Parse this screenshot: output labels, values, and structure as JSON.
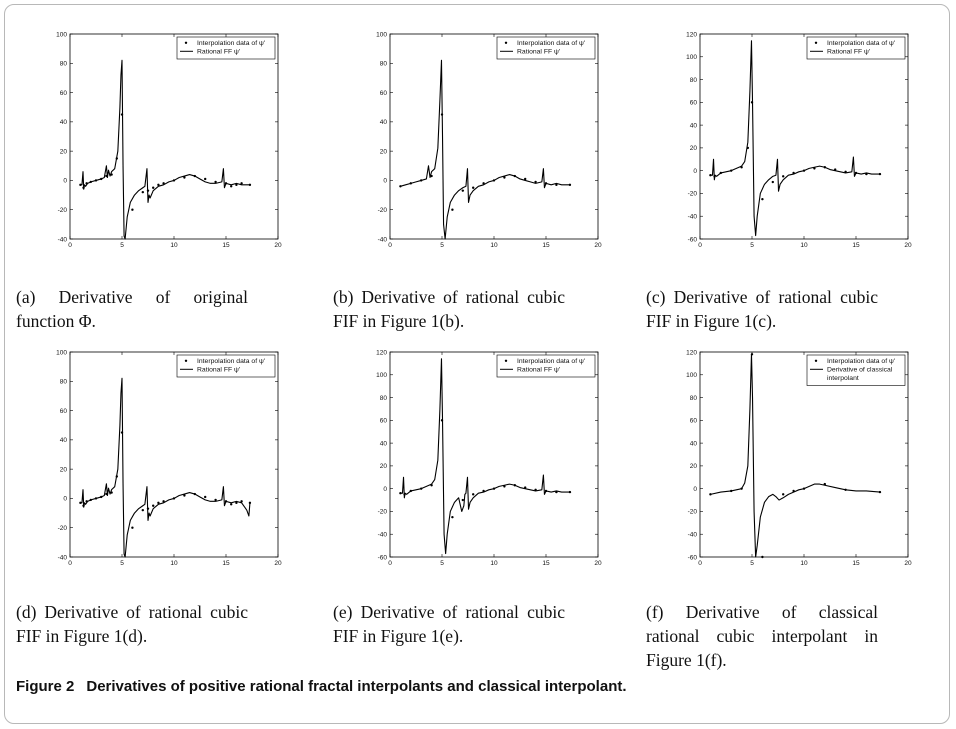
{
  "figure": {
    "label": "Figure 2",
    "caption": "Derivatives of positive rational fractal interpolants and classical interpolant."
  },
  "colors": {
    "line": "#000000",
    "background": "#ffffff",
    "frame": "#b8b8b8"
  },
  "chart_data": [
    {
      "id": "a",
      "type": "line",
      "caption": "(a) Derivative of original function Φ.",
      "xlim": [
        0,
        20
      ],
      "ylim": [
        -40,
        100
      ],
      "xticks": [
        "0",
        "5",
        "10",
        "15",
        "20"
      ],
      "yticks": [
        "-40",
        "-20",
        "0",
        "20",
        "40",
        "60",
        "80",
        "100"
      ],
      "legend": {
        "position": "top-right",
        "entries": [
          "Interpolation data of ψ'",
          "Rational FF ψ'"
        ]
      },
      "series": [
        {
          "kind": "markers",
          "x": [
            1,
            1.3,
            1.6,
            2,
            2.5,
            3,
            3.5,
            4,
            4.5,
            5,
            6,
            7,
            7.5,
            8,
            8.5,
            9,
            10,
            11,
            12,
            13,
            14,
            15,
            15.5,
            16,
            16.5,
            17.3
          ],
          "y": [
            -3,
            -5,
            -2,
            -1,
            0,
            1,
            3,
            4,
            15,
            45,
            -20,
            -8,
            -7,
            -5,
            -3,
            -2,
            0,
            2,
            3,
            1,
            -1,
            -2,
            -4,
            -3,
            -2,
            -3
          ]
        },
        {
          "kind": "line",
          "x": [
            1,
            1.15,
            1.25,
            1.32,
            1.4,
            1.5,
            1.7,
            2,
            2.5,
            3,
            3.3,
            3.5,
            3.6,
            3.7,
            3.85,
            4,
            4.3,
            4.6,
            4.8,
            4.9,
            5,
            5.1,
            5.2,
            5.3,
            5.5,
            5.8,
            6.2,
            6.6,
            7,
            7.2,
            7.4,
            7.5,
            7.6,
            7.7,
            8,
            8.5,
            9,
            9.5,
            10,
            10.5,
            11,
            11.5,
            12,
            12.5,
            13,
            13.5,
            14,
            14.6,
            14.75,
            14.85,
            15,
            15.5,
            16,
            16.5,
            17.3
          ],
          "y": [
            -3,
            -3,
            6,
            -6,
            -3,
            -4,
            -2,
            -1,
            0,
            1,
            2,
            10,
            2,
            7,
            3,
            6,
            8,
            20,
            50,
            72,
            82,
            10,
            -38,
            -40,
            -25,
            -15,
            -10,
            -7,
            -5,
            -4,
            8,
            -15,
            -10,
            -12,
            -7,
            -4,
            -3,
            -1,
            0,
            2,
            3,
            4,
            3,
            1,
            -1,
            -2,
            -2,
            -1,
            8,
            -5,
            -2,
            -3,
            -2,
            -3,
            -3
          ]
        }
      ]
    },
    {
      "id": "b",
      "type": "line",
      "caption": "(b) Derivative of rational cubic FIF in Figure 1(b).",
      "xlim": [
        0,
        20
      ],
      "ylim": [
        -40,
        100
      ],
      "xticks": [
        "0",
        "5",
        "10",
        "15",
        "20"
      ],
      "yticks": [
        "-40",
        "-20",
        "0",
        "20",
        "40",
        "60",
        "80",
        "100"
      ],
      "legend": {
        "position": "top-right",
        "entries": [
          "Interpolation data of ψ'",
          "Rational FF ψ'"
        ]
      },
      "series": [
        {
          "kind": "markers",
          "x": [
            1,
            2,
            3,
            4,
            5,
            6,
            7,
            8,
            9,
            10,
            11,
            12,
            13,
            14,
            15,
            16,
            17.3
          ],
          "y": [
            -4,
            -2,
            0,
            3,
            45,
            -20,
            -7,
            -5,
            -2,
            0,
            2,
            3,
            1,
            -1,
            -2,
            -3,
            -3
          ]
        },
        {
          "kind": "line",
          "x": [
            1,
            1.5,
            2,
            2.5,
            3,
            3.5,
            3.7,
            3.85,
            4,
            4.3,
            4.6,
            4.8,
            4.95,
            5.05,
            5.15,
            5.3,
            5.5,
            5.8,
            6.2,
            6.6,
            7,
            7.3,
            7.45,
            7.55,
            7.7,
            8,
            8.5,
            9,
            9.5,
            10,
            10.5,
            11,
            11.5,
            12,
            12.5,
            13,
            13.5,
            14,
            14.6,
            14.75,
            14.85,
            15,
            15.5,
            16,
            16.5,
            17.3
          ],
          "y": [
            -4,
            -3,
            -2,
            -1,
            0,
            1,
            10,
            2,
            6,
            8,
            22,
            55,
            82,
            30,
            -30,
            -40,
            -25,
            -15,
            -10,
            -7,
            -5,
            -4,
            8,
            -15,
            -10,
            -7,
            -4,
            -3,
            -1,
            0,
            2,
            3,
            4,
            3,
            1,
            0,
            -1,
            -2,
            -1,
            8,
            -5,
            -2,
            -3,
            -2,
            -3,
            -3
          ]
        }
      ]
    },
    {
      "id": "c",
      "type": "line",
      "caption": "(c) Derivative of rational cubic FIF in Figure 1(c).",
      "xlim": [
        0,
        20
      ],
      "ylim": [
        -60,
        120
      ],
      "xticks": [
        "0",
        "5",
        "10",
        "15",
        "20"
      ],
      "yticks": [
        "-60",
        "-40",
        "-20",
        "0",
        "20",
        "40",
        "60",
        "80",
        "100",
        "120"
      ],
      "legend": {
        "position": "top-right",
        "entries": [
          "Interpolation data of ψ'",
          "Rational FF ψ'"
        ]
      },
      "series": [
        {
          "kind": "markers",
          "x": [
            1,
            1.4,
            2,
            3,
            4,
            4.6,
            5,
            6,
            7,
            8,
            9,
            10,
            11,
            12,
            13,
            14,
            15,
            16,
            17.3
          ],
          "y": [
            -4,
            -5,
            -2,
            0,
            3,
            20,
            60,
            -25,
            -10,
            -5,
            -2,
            0,
            2,
            3,
            1,
            -1,
            -2,
            -3,
            -3
          ]
        },
        {
          "kind": "line",
          "x": [
            1,
            1.2,
            1.3,
            1.38,
            1.45,
            1.6,
            2,
            2.5,
            3,
            3.5,
            4,
            4.3,
            4.6,
            4.8,
            4.95,
            5.05,
            5.2,
            5.35,
            5.5,
            5.8,
            6.2,
            6.6,
            7,
            7.3,
            7.45,
            7.55,
            7.7,
            8,
            8.5,
            9,
            9.5,
            10,
            10.5,
            11,
            11.5,
            12,
            12.5,
            13,
            13.5,
            14,
            14.6,
            14.75,
            14.85,
            15,
            15.5,
            16,
            16.5,
            17.3
          ],
          "y": [
            -4,
            -4,
            10,
            -8,
            -4,
            -5,
            -2,
            -1,
            0,
            2,
            4,
            8,
            25,
            70,
            114,
            60,
            -40,
            -57,
            -40,
            -20,
            -12,
            -8,
            -5,
            -4,
            10,
            -18,
            -12,
            -8,
            -4,
            -3,
            -1,
            0,
            2,
            3,
            4,
            3,
            1,
            0,
            -1,
            -2,
            -1,
            12,
            -5,
            -2,
            -3,
            -2,
            -3,
            -3
          ]
        }
      ]
    },
    {
      "id": "d",
      "type": "line",
      "caption": "(d) Derivative of rational cubic FIF in Figure 1(d).",
      "xlim": [
        0,
        20
      ],
      "ylim": [
        -40,
        100
      ],
      "xticks": [
        "0",
        "5",
        "10",
        "15",
        "20"
      ],
      "yticks": [
        "-40",
        "-20",
        "0",
        "20",
        "40",
        "60",
        "80",
        "100"
      ],
      "legend": {
        "position": "top-right",
        "entries": [
          "Interpolation data of ψ'",
          "Rational FF ψ'"
        ]
      },
      "series": [
        {
          "kind": "markers",
          "x": [
            1,
            1.3,
            1.6,
            2,
            2.5,
            3,
            3.5,
            4,
            4.5,
            5,
            6,
            7,
            7.5,
            8,
            8.5,
            9,
            10,
            11,
            12,
            13,
            14,
            15,
            15.5,
            16,
            16.5,
            17.3
          ],
          "y": [
            -3,
            -5,
            -2,
            -1,
            0,
            1,
            3,
            4,
            15,
            45,
            -20,
            -8,
            -7,
            -5,
            -3,
            -2,
            0,
            2,
            3,
            1,
            -1,
            -2,
            -4,
            -3,
            -2,
            -3
          ]
        },
        {
          "kind": "line",
          "x": [
            1,
            1.15,
            1.25,
            1.32,
            1.4,
            1.5,
            1.7,
            2,
            2.5,
            3,
            3.3,
            3.5,
            3.6,
            3.7,
            3.85,
            4,
            4.3,
            4.6,
            4.8,
            4.9,
            5,
            5.1,
            5.2,
            5.3,
            5.5,
            5.8,
            6.2,
            6.6,
            7,
            7.2,
            7.4,
            7.5,
            7.6,
            7.7,
            8,
            8.5,
            9,
            9.5,
            10,
            10.5,
            11,
            11.5,
            12,
            12.5,
            13,
            13.5,
            14,
            14.6,
            14.75,
            14.85,
            15,
            15.5,
            16,
            16.5,
            17,
            17.2,
            17.3
          ],
          "y": [
            -3,
            -3,
            6,
            -6,
            -3,
            -4,
            -2,
            -1,
            0,
            1,
            2,
            10,
            2,
            7,
            3,
            6,
            8,
            20,
            50,
            72,
            82,
            10,
            -38,
            -40,
            -25,
            -15,
            -10,
            -7,
            -5,
            -4,
            8,
            -15,
            -10,
            -12,
            -7,
            -4,
            -3,
            -1,
            0,
            2,
            3,
            4,
            3,
            1,
            -1,
            -2,
            -2,
            -1,
            8,
            -5,
            -2,
            -3,
            -2,
            -3,
            -8,
            -12,
            -3
          ]
        }
      ]
    },
    {
      "id": "e",
      "type": "line",
      "caption": "(e) Derivative of rational cubic FIF in Figure 1(e).",
      "xlim": [
        0,
        20
      ],
      "ylim": [
        -60,
        120
      ],
      "xticks": [
        "0",
        "5",
        "10",
        "15",
        "20"
      ],
      "yticks": [
        "-60",
        "-40",
        "-20",
        "0",
        "20",
        "40",
        "60",
        "80",
        "100",
        "120"
      ],
      "legend": {
        "position": "top-right",
        "entries": [
          "Interpolation data of ψ'",
          "Rational FF ψ'"
        ]
      },
      "series": [
        {
          "kind": "markers",
          "x": [
            1,
            1.4,
            2,
            3,
            4,
            5,
            6,
            7,
            8,
            9,
            10,
            11,
            12,
            13,
            14,
            15,
            16,
            17.3
          ],
          "y": [
            -4,
            -5,
            -2,
            0,
            3,
            60,
            -25,
            -10,
            -5,
            -2,
            0,
            2,
            3,
            1,
            -1,
            -2,
            -3,
            -3
          ]
        },
        {
          "kind": "line",
          "x": [
            1,
            1.2,
            1.3,
            1.38,
            1.45,
            1.6,
            2,
            2.5,
            3,
            3.5,
            4,
            4.3,
            4.6,
            4.8,
            4.95,
            5.05,
            5.2,
            5.35,
            5.5,
            5.8,
            6.2,
            6.6,
            6.9,
            7.1,
            7.2,
            7.3,
            7.45,
            7.55,
            7.7,
            8,
            8.5,
            9,
            9.5,
            10,
            10.5,
            11,
            11.5,
            12,
            12.5,
            13,
            13.5,
            14,
            14.6,
            14.75,
            14.85,
            15,
            15.5,
            16,
            16.5,
            17.3
          ],
          "y": [
            -4,
            -4,
            10,
            -8,
            -4,
            -5,
            -2,
            -1,
            0,
            2,
            4,
            8,
            25,
            70,
            114,
            60,
            -40,
            -57,
            -40,
            -20,
            -12,
            -8,
            -20,
            -15,
            -5,
            -4,
            10,
            -18,
            -12,
            -8,
            -4,
            -3,
            -1,
            0,
            2,
            3,
            4,
            3,
            1,
            0,
            -1,
            -2,
            -1,
            12,
            -5,
            -2,
            -3,
            -2,
            -3,
            -3
          ]
        }
      ]
    },
    {
      "id": "f",
      "type": "line",
      "caption": "(f) Derivative of classical rational cubic interpolant in Figure 1(f).",
      "xlim": [
        0,
        20
      ],
      "ylim": [
        -60,
        120
      ],
      "xticks": [
        "0",
        "5",
        "10",
        "15",
        "20"
      ],
      "yticks": [
        "-60",
        "-40",
        "-20",
        "0",
        "20",
        "40",
        "60",
        "80",
        "100",
        "120"
      ],
      "legend": {
        "position": "top-right",
        "entries": [
          "Interpolation data of ψ'",
          "Derivative of classical interpolant"
        ]
      },
      "series": [
        {
          "kind": "markers",
          "x": [
            1,
            3,
            4,
            5,
            6,
            8,
            9,
            10,
            12,
            14,
            17.3
          ],
          "y": [
            -5,
            -2,
            0,
            118,
            -60,
            -5,
            -2,
            0,
            4,
            -1,
            -3
          ]
        },
        {
          "kind": "line",
          "x": [
            1,
            2,
            3,
            3.5,
            4,
            4.3,
            4.6,
            4.8,
            4.95,
            5.05,
            5.2,
            5.35,
            5.5,
            5.8,
            6.2,
            6.6,
            7,
            7.3,
            7.6,
            8,
            8.5,
            9,
            9.5,
            10,
            10.5,
            11,
            11.5,
            12,
            13,
            14,
            15,
            16,
            17.3
          ],
          "y": [
            -5,
            -3,
            -2,
            -1,
            0,
            5,
            20,
            70,
            118,
            80,
            -20,
            -60,
            -50,
            -25,
            -12,
            -7,
            -5,
            -7,
            -10,
            -8,
            -5,
            -3,
            -1,
            0,
            2,
            4,
            4,
            3,
            1,
            -1,
            -2,
            -2,
            -3
          ]
        }
      ]
    }
  ]
}
